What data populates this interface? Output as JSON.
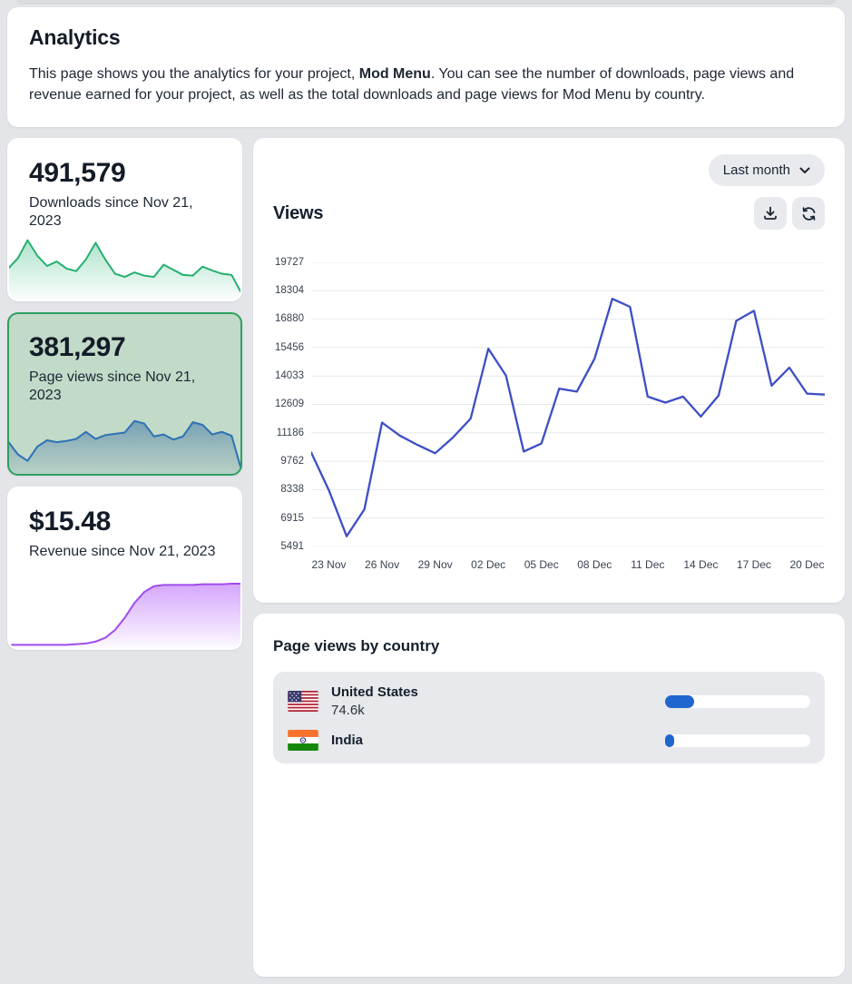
{
  "header": {
    "title": "Analytics",
    "description_prefix": "This page shows you the analytics for your project, ",
    "project_name": "Mod Menu",
    "description_suffix": ". You can see the number of downloads, page views and revenue earned for your project, as well as the total downloads and page views for Mod Menu by country."
  },
  "stats": [
    {
      "value": "491,579",
      "label": "Downloads since Nov 21, 2023",
      "selected": false,
      "spark_stroke": "#25b06f",
      "spark_fill_top": "rgba(44,183,121,0.38)",
      "spark_fill_bottom": "rgba(44,183,121,0.02)",
      "sparkline": [
        46,
        62,
        90,
        66,
        50,
        57,
        46,
        42,
        60,
        86,
        60,
        38,
        33,
        40,
        35,
        33,
        52,
        44,
        36,
        35,
        49,
        43,
        38,
        36,
        8
      ]
    },
    {
      "value": "381,297",
      "label": "Page views since Nov 21, 2023",
      "selected": true,
      "spark_stroke": "#2d72b5",
      "spark_fill_top": "rgba(56,112,166,0.55)",
      "spark_fill_bottom": "rgba(86,130,170,0.10)",
      "sparkline": [
        48,
        28,
        18,
        40,
        50,
        47,
        49,
        52,
        63,
        52,
        58,
        60,
        62,
        80,
        76,
        56,
        59,
        51,
        56,
        78,
        74,
        59,
        63,
        57,
        4
      ]
    },
    {
      "value": "$15.48",
      "label": "Revenue since Nov 21, 2023",
      "selected": false,
      "spark_stroke": "#a04cec",
      "spark_fill_top": "rgba(205,150,250,0.85)",
      "spark_fill_bottom": "rgba(205,150,250,0.04)",
      "sparkline": [
        3,
        3,
        3,
        3,
        3,
        3,
        3,
        4,
        5,
        8,
        14,
        26,
        45,
        68,
        85,
        94,
        96,
        96,
        96,
        96,
        97,
        97,
        97,
        98,
        98
      ]
    }
  ],
  "chart_controls": {
    "range_label": "Last month"
  },
  "chart_data": {
    "type": "line",
    "title": "Views",
    "x": [
      "22 Nov",
      "23 Nov",
      "24 Nov",
      "25 Nov",
      "26 Nov",
      "27 Nov",
      "28 Nov",
      "29 Nov",
      "30 Nov",
      "01 Dec",
      "02 Dec",
      "03 Dec",
      "04 Dec",
      "05 Dec",
      "06 Dec",
      "07 Dec",
      "08 Dec",
      "09 Dec",
      "10 Dec",
      "11 Dec",
      "12 Dec",
      "13 Dec",
      "14 Dec",
      "15 Dec",
      "16 Dec",
      "17 Dec",
      "18 Dec",
      "19 Dec",
      "20 Dec",
      "21 Dec"
    ],
    "values": [
      10200,
      8300,
      6000,
      7350,
      11700,
      11050,
      10580,
      10160,
      10950,
      11900,
      15400,
      14050,
      10250,
      10650,
      13400,
      13250,
      14900,
      17900,
      17500,
      13000,
      12700,
      13000,
      12000,
      13050,
      16800,
      17300,
      13550,
      14450,
      13150,
      13100
    ],
    "y_ticks": [
      5491,
      6915,
      8338,
      9762,
      11186,
      12609,
      14033,
      15456,
      16880,
      18304,
      19727
    ],
    "x_tick_labels": [
      "23 Nov",
      "26 Nov",
      "29 Nov",
      "02 Dec",
      "05 Dec",
      "08 Dec",
      "11 Dec",
      "14 Dec",
      "17 Dec",
      "20 Dec"
    ],
    "ylim": [
      5491,
      19727
    ],
    "xlabel": "",
    "ylabel": "",
    "grid": true,
    "legend": false,
    "line_color": "#3d4ec4",
    "grid_color": "#e7e9ec"
  },
  "countries": {
    "title": "Page views by country",
    "items": [
      {
        "name": "United States",
        "views": "74.6k",
        "bar_percent": 20,
        "bar_color": "#2066cf"
      },
      {
        "name": "India",
        "bar_percent": 6,
        "bar_color": "#2066cf"
      }
    ]
  }
}
